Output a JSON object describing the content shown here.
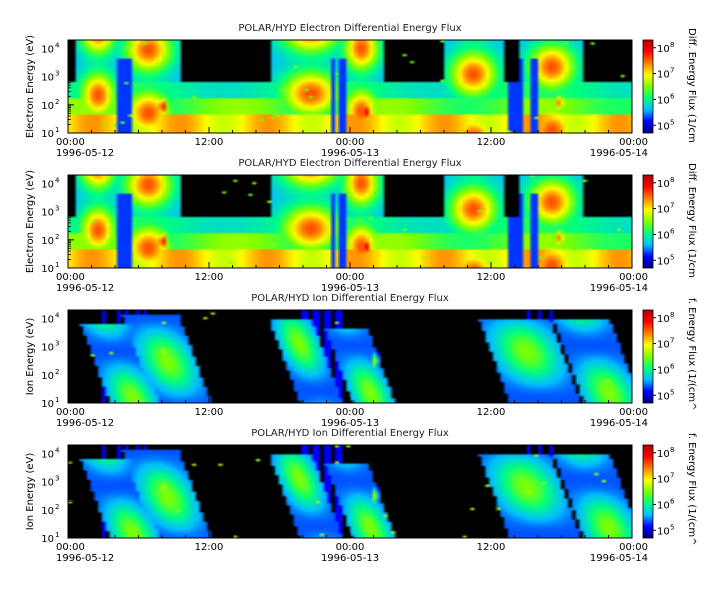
{
  "chart_data": [
    {
      "type": "heatmap",
      "title": "POLAR/HYD  Electron Differential Energy Flux",
      "ylabel": "Electron Energy (eV)",
      "colorbar_label": "Diff. Energy Flux (1/cm",
      "yscale": "log",
      "ylim": [
        10,
        20000
      ],
      "y_ticks": [
        {
          "value": 10,
          "base": "10",
          "exp": "1"
        },
        {
          "value": 100,
          "base": "10",
          "exp": "2"
        },
        {
          "value": 1000,
          "base": "10",
          "exp": "3"
        },
        {
          "value": 10000,
          "base": "10",
          "exp": "4"
        }
      ],
      "colorbar_ticks": [
        {
          "value": 100000,
          "base": "10",
          "exp": "5"
        },
        {
          "value": 1000000,
          "base": "10",
          "exp": "6"
        },
        {
          "value": 10000000,
          "base": "10",
          "exp": "7"
        },
        {
          "value": 100000000,
          "base": "10",
          "exp": "8"
        }
      ],
      "x_ticks": [
        {
          "time": "1996-05-12T00:00",
          "label": "00:00",
          "date": "1996-05-12"
        },
        {
          "time": "1996-05-12T12:00",
          "label": "12:00",
          "date": ""
        },
        {
          "time": "1996-05-13T00:00",
          "label": "00:00",
          "date": "1996-05-13"
        },
        {
          "time": "1996-05-13T12:00",
          "label": "12:00",
          "date": ""
        },
        {
          "time": "1996-05-14T00:00",
          "label": "00:00",
          "date": "1996-05-14"
        }
      ],
      "xlim": [
        "1996-05-12T00:00",
        "1996-05-14T00:00"
      ],
      "species": "electron"
    },
    {
      "type": "heatmap",
      "title": "POLAR/HYD  Electron Differential Energy Flux",
      "ylabel": "Electron Energy (eV)",
      "colorbar_label": "Diff. Energy Flux (1/cm",
      "yscale": "log",
      "ylim": [
        10,
        20000
      ],
      "y_ticks": [
        {
          "value": 10,
          "base": "10",
          "exp": "1"
        },
        {
          "value": 100,
          "base": "10",
          "exp": "2"
        },
        {
          "value": 1000,
          "base": "10",
          "exp": "3"
        },
        {
          "value": 10000,
          "base": "10",
          "exp": "4"
        }
      ],
      "colorbar_ticks": [
        {
          "value": 100000,
          "base": "10",
          "exp": "5"
        },
        {
          "value": 1000000,
          "base": "10",
          "exp": "6"
        },
        {
          "value": 10000000,
          "base": "10",
          "exp": "7"
        },
        {
          "value": 100000000,
          "base": "10",
          "exp": "8"
        }
      ],
      "x_ticks": [
        {
          "time": "1996-05-12T00:00",
          "label": "00:00",
          "date": "1996-05-12"
        },
        {
          "time": "1996-05-12T12:00",
          "label": "12:00",
          "date": ""
        },
        {
          "time": "1996-05-13T00:00",
          "label": "00:00",
          "date": "1996-05-13"
        },
        {
          "time": "1996-05-13T12:00",
          "label": "12:00",
          "date": ""
        },
        {
          "time": "1996-05-14T00:00",
          "label": "00:00",
          "date": "1996-05-14"
        }
      ],
      "xlim": [
        "1996-05-12T00:00",
        "1996-05-14T00:00"
      ],
      "species": "electron"
    },
    {
      "type": "heatmap",
      "title": "POLAR/HYD  Ion Differential Energy Flux",
      "ylabel": "Ion Energy (eV)",
      "colorbar_label": "f. Energy Flux (1/(cm^",
      "yscale": "log",
      "ylim": [
        10,
        20000
      ],
      "y_ticks": [
        {
          "value": 10,
          "base": "10",
          "exp": "1"
        },
        {
          "value": 100,
          "base": "10",
          "exp": "2"
        },
        {
          "value": 1000,
          "base": "10",
          "exp": "3"
        },
        {
          "value": 10000,
          "base": "10",
          "exp": "4"
        }
      ],
      "colorbar_ticks": [
        {
          "value": 100000,
          "base": "10",
          "exp": "5"
        },
        {
          "value": 1000000,
          "base": "10",
          "exp": "6"
        },
        {
          "value": 10000000,
          "base": "10",
          "exp": "7"
        },
        {
          "value": 100000000,
          "base": "10",
          "exp": "8"
        }
      ],
      "x_ticks": [
        {
          "time": "1996-05-12T00:00",
          "label": "00:00",
          "date": "1996-05-12"
        },
        {
          "time": "1996-05-12T12:00",
          "label": "12:00",
          "date": ""
        },
        {
          "time": "1996-05-13T00:00",
          "label": "00:00",
          "date": "1996-05-13"
        },
        {
          "time": "1996-05-13T12:00",
          "label": "12:00",
          "date": ""
        },
        {
          "time": "1996-05-14T00:00",
          "label": "00:00",
          "date": "1996-05-14"
        }
      ],
      "xlim": [
        "1996-05-12T00:00",
        "1996-05-14T00:00"
      ],
      "species": "ion"
    },
    {
      "type": "heatmap",
      "title": "POLAR/HYD  Ion Differential Energy Flux",
      "ylabel": "Ion Energy (eV)",
      "colorbar_label": "f. Energy Flux (1/(cm^",
      "yscale": "log",
      "ylim": [
        10,
        20000
      ],
      "y_ticks": [
        {
          "value": 10,
          "base": "10",
          "exp": "1"
        },
        {
          "value": 100,
          "base": "10",
          "exp": "2"
        },
        {
          "value": 1000,
          "base": "10",
          "exp": "3"
        },
        {
          "value": 10000,
          "base": "10",
          "exp": "4"
        }
      ],
      "colorbar_ticks": [
        {
          "value": 100000,
          "base": "10",
          "exp": "5"
        },
        {
          "value": 1000000,
          "base": "10",
          "exp": "6"
        },
        {
          "value": 10000000,
          "base": "10",
          "exp": "7"
        },
        {
          "value": 100000000,
          "base": "10",
          "exp": "8"
        }
      ],
      "x_ticks": [
        {
          "time": "1996-05-12T00:00",
          "label": "00:00",
          "date": "1996-05-12"
        },
        {
          "time": "1996-05-12T12:00",
          "label": "12:00",
          "date": ""
        },
        {
          "time": "1996-05-13T00:00",
          "label": "00:00",
          "date": "1996-05-13"
        },
        {
          "time": "1996-05-13T12:00",
          "label": "12:00",
          "date": ""
        },
        {
          "time": "1996-05-14T00:00",
          "label": "00:00",
          "date": "1996-05-14"
        }
      ],
      "xlim": [
        "1996-05-12T00:00",
        "1996-05-14T00:00"
      ],
      "species": "ion"
    }
  ],
  "colorscale": [
    "#00007f",
    "#0000ff",
    "#00bfff",
    "#00ff7f",
    "#7fff00",
    "#ffff00",
    "#ff8000",
    "#ff0000",
    "#b00000"
  ],
  "background_color": "#000000"
}
